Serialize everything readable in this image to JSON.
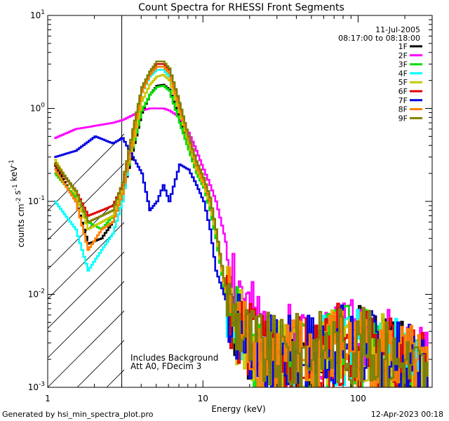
{
  "chart_data": {
    "type": "line",
    "title": "Count Spectra for RHESSI Front Segments",
    "xlabel": "Energy (keV)",
    "ylabel": "counts cm-2 s-1 keV-1",
    "xscale": "log",
    "yscale": "log",
    "xlim": [
      1,
      300
    ],
    "ylim": [
      0.001,
      10
    ],
    "x_tick_labels": [
      "1",
      "10",
      "100"
    ],
    "y_tick_labels": [
      "10-3",
      "10-2",
      "10-1",
      "100",
      "101"
    ],
    "hatched_region": [
      1,
      3
    ],
    "date": "11-Jul-2005",
    "time_range": "08:17:00 to 08:18:00",
    "annotations": [
      "Includes Background",
      "Att A0, FDecim 3"
    ],
    "footer_left": "Generated by hsi_min_spectra_plot.pro",
    "footer_right": "12-Apr-2023 00:18",
    "legend_position": "top-right",
    "series": [
      {
        "name": "1F",
        "color": "#000000",
        "x": [
          1.1,
          1.5,
          1.8,
          2.2,
          2.6,
          3.0,
          3.5,
          4.0,
          4.5,
          5.0,
          5.5,
          6.0,
          7.0,
          8.0,
          9.0,
          10.0,
          11.0,
          12.0,
          13.5,
          15,
          20,
          30,
          50,
          80,
          120,
          200,
          280
        ],
        "values": [
          0.24,
          0.1,
          0.035,
          0.04,
          0.06,
          0.12,
          0.35,
          0.9,
          1.4,
          1.75,
          1.8,
          1.6,
          0.75,
          0.38,
          0.21,
          0.15,
          0.085,
          0.04,
          0.012,
          0.006,
          0.002,
          0.0015,
          0.002,
          0.003,
          0.0025,
          0.0018,
          0.0012
        ]
      },
      {
        "name": "2F",
        "color": "#ff00ff",
        "x": [
          1.1,
          1.5,
          2.0,
          2.6,
          3.0,
          3.5,
          4.0,
          4.5,
          5.0,
          5.5,
          6.0,
          7.0,
          8.0,
          9.0,
          10.0,
          11.0,
          12.0,
          13.5,
          15.0,
          17.0,
          20,
          30,
          50,
          80,
          120,
          200,
          280
        ],
        "values": [
          0.48,
          0.6,
          0.65,
          0.7,
          0.75,
          0.85,
          0.95,
          1.0,
          1.0,
          1.0,
          0.95,
          0.8,
          0.55,
          0.35,
          0.22,
          0.15,
          0.1,
          0.045,
          0.02,
          0.012,
          0.005,
          0.003,
          0.003,
          0.004,
          0.003,
          0.002,
          0.0015
        ]
      },
      {
        "name": "3F",
        "color": "#00e000",
        "x": [
          1.1,
          1.5,
          1.8,
          2.2,
          2.6,
          3.0,
          3.5,
          4.0,
          4.5,
          5.0,
          5.5,
          6.0,
          7.0,
          8.0,
          9.0,
          10.0,
          11.0,
          12.0,
          13.5,
          15,
          20,
          30,
          50,
          80,
          120,
          200,
          280
        ],
        "values": [
          0.2,
          0.11,
          0.06,
          0.05,
          0.07,
          0.13,
          0.38,
          0.95,
          1.4,
          1.7,
          1.75,
          1.55,
          0.7,
          0.36,
          0.2,
          0.14,
          0.08,
          0.04,
          0.012,
          0.006,
          0.0025,
          0.0018,
          0.002,
          0.003,
          0.0025,
          0.0018,
          0.0013
        ]
      },
      {
        "name": "4F",
        "color": "#00ffff",
        "x": [
          1.1,
          1.5,
          1.8,
          2.2,
          2.6,
          3.0,
          3.5,
          4.0,
          4.5,
          5.0,
          5.5,
          6.0,
          7.0,
          8.0,
          9.0,
          10.0,
          11.0,
          12.0,
          13.5,
          15,
          20,
          30,
          50,
          80,
          120,
          200,
          280
        ],
        "values": [
          0.1,
          0.05,
          0.018,
          0.03,
          0.045,
          0.1,
          0.5,
          1.5,
          2.2,
          2.6,
          2.6,
          2.2,
          0.95,
          0.45,
          0.24,
          0.15,
          0.09,
          0.045,
          0.013,
          0.006,
          0.0025,
          0.0018,
          0.0022,
          0.0028,
          0.0025,
          0.0018,
          0.0013
        ]
      },
      {
        "name": "5F",
        "color": "#c8c800",
        "x": [
          1.1,
          1.5,
          1.8,
          2.2,
          2.6,
          3.0,
          3.5,
          4.0,
          4.5,
          5.0,
          5.5,
          6.0,
          7.0,
          8.0,
          9.0,
          10.0,
          11.0,
          12.0,
          13.5,
          15,
          20,
          30,
          50,
          80,
          120,
          200,
          280
        ],
        "values": [
          0.28,
          0.12,
          0.05,
          0.06,
          0.07,
          0.14,
          0.4,
          1.2,
          1.8,
          2.2,
          2.3,
          2.0,
          0.9,
          0.42,
          0.22,
          0.15,
          0.09,
          0.045,
          0.013,
          0.006,
          0.0028,
          0.002,
          0.0022,
          0.003,
          0.0025,
          0.0018,
          0.0013
        ]
      },
      {
        "name": "6F",
        "color": "#e00000",
        "x": [
          1.1,
          1.5,
          1.8,
          2.2,
          2.6,
          3.0,
          3.5,
          4.0,
          4.5,
          5.0,
          5.5,
          6.0,
          7.0,
          8.0,
          9.0,
          10.0,
          11.0,
          12.0,
          13.5,
          15,
          20,
          30,
          50,
          80,
          120,
          200,
          280
        ],
        "values": [
          0.25,
          0.13,
          0.07,
          0.08,
          0.09,
          0.15,
          0.55,
          1.6,
          2.4,
          3.0,
          3.0,
          2.6,
          1.1,
          0.5,
          0.26,
          0.17,
          0.1,
          0.05,
          0.014,
          0.007,
          0.003,
          0.002,
          0.0022,
          0.003,
          0.0025,
          0.0018,
          0.0013
        ]
      },
      {
        "name": "7F",
        "color": "#0000e0",
        "x": [
          1.1,
          1.5,
          2.0,
          2.6,
          3.0,
          3.5,
          4.0,
          4.5,
          5.0,
          5.5,
          6.0,
          7.0,
          8.0,
          9.0,
          10.0,
          11.0,
          12.0,
          13.5,
          15,
          20,
          30,
          50,
          80,
          120,
          200,
          280
        ],
        "values": [
          0.3,
          0.35,
          0.5,
          0.42,
          0.48,
          0.3,
          0.2,
          0.08,
          0.1,
          0.15,
          0.1,
          0.25,
          0.22,
          0.15,
          0.1,
          0.05,
          0.018,
          0.01,
          0.006,
          0.003,
          0.002,
          0.0025,
          0.003,
          0.0025,
          0.0018,
          0.0013
        ]
      },
      {
        "name": "8F",
        "color": "#ff8000",
        "x": [
          1.1,
          1.5,
          1.8,
          2.2,
          2.6,
          3.0,
          3.5,
          4.0,
          4.5,
          5.0,
          5.5,
          6.0,
          7.0,
          8.0,
          9.0,
          10.0,
          11.0,
          12.0,
          13.5,
          15,
          20,
          30,
          50,
          80,
          120,
          200,
          280
        ],
        "values": [
          0.22,
          0.1,
          0.03,
          0.05,
          0.06,
          0.12,
          0.5,
          1.5,
          2.3,
          2.8,
          2.8,
          2.4,
          1.0,
          0.46,
          0.24,
          0.16,
          0.1,
          0.05,
          0.014,
          0.007,
          0.003,
          0.002,
          0.0022,
          0.003,
          0.0025,
          0.0018,
          0.0013
        ]
      },
      {
        "name": "9F",
        "color": "#808000",
        "x": [
          1.1,
          1.5,
          1.8,
          2.2,
          2.6,
          3.0,
          3.5,
          4.0,
          4.5,
          5.0,
          5.5,
          6.0,
          7.0,
          8.0,
          9.0,
          10.0,
          11.0,
          12.0,
          13.5,
          15,
          20,
          30,
          50,
          80,
          120,
          200,
          280
        ],
        "values": [
          0.26,
          0.13,
          0.06,
          0.07,
          0.08,
          0.16,
          0.6,
          1.7,
          2.5,
          3.2,
          3.2,
          2.7,
          1.15,
          0.5,
          0.27,
          0.18,
          0.11,
          0.05,
          0.015,
          0.007,
          0.003,
          0.002,
          0.0025,
          0.003,
          0.0025,
          0.0018,
          0.0013
        ]
      }
    ]
  }
}
